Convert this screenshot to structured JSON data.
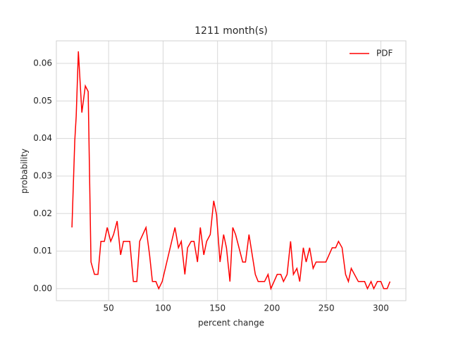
{
  "chart_data": {
    "type": "line",
    "title": "1211 month(s)",
    "xlabel": "percent change",
    "ylabel": "probability",
    "legend": "upper right",
    "grid": true,
    "xlim": [
      2,
      323
    ],
    "xticks": [
      50,
      100,
      150,
      200,
      250,
      300
    ],
    "ylim": [
      -0.0032,
      0.066
    ],
    "yticks": [
      {
        "value": 0,
        "label": "0.00"
      },
      0.01,
      0.02,
      0.03,
      0.04,
      0.05,
      0.06
    ],
    "series": [
      {
        "name": "PDF",
        "color": "#ff0000",
        "x": [
          16.3,
          18.9,
          20.2,
          22.2,
          25.4,
          28.6,
          31.2,
          33.8,
          37.0,
          40.2,
          42.9,
          46.1,
          48.7,
          51.9,
          54.5,
          57.8,
          61.0,
          63.6,
          69.4,
          72.7,
          75.9,
          78.5,
          84.3,
          87.6,
          90.2,
          93.4,
          96.0,
          99.2,
          110.9,
          114.1,
          116.7,
          120.0,
          122.5,
          125.8,
          128.4,
          131.6,
          134.2,
          137.4,
          140.0,
          143.3,
          146.5,
          149.1,
          152.3,
          155.6,
          158.2,
          161.4,
          164.0,
          166.6,
          173.1,
          175.7,
          178.9,
          184.7,
          187.3,
          193.2,
          196.4,
          199.0,
          204.8,
          208.1,
          210.6,
          213.9,
          217.1,
          219.7,
          222.9,
          225.5,
          228.8,
          231.4,
          234.6,
          237.8,
          240.5,
          249.5,
          255.3,
          258.5,
          261.1,
          264.4,
          267.6,
          270.2,
          272.8,
          279.3,
          285.1,
          287.7,
          291.0,
          293.5,
          296.8,
          300.0,
          302.6,
          305.8,
          308.4
        ],
        "values": [
          0.0163,
          0.0394,
          0.0459,
          0.0632,
          0.0469,
          0.054,
          0.0525,
          0.0071,
          0.0038,
          0.0038,
          0.0126,
          0.0126,
          0.0163,
          0.0126,
          0.0144,
          0.018,
          0.009,
          0.0126,
          0.0126,
          0.0019,
          0.0019,
          0.0126,
          0.0163,
          0.009,
          0.0019,
          0.0019,
          0,
          0.0019,
          0.0163,
          0.0109,
          0.0126,
          0.0038,
          0.0109,
          0.0126,
          0.0126,
          0.0071,
          0.0163,
          0.009,
          0.0126,
          0.0144,
          0.0234,
          0.0197,
          0.0071,
          0.0144,
          0.0109,
          0.0019,
          0.0163,
          0.0144,
          0.0071,
          0.0071,
          0.0144,
          0.0038,
          0.0019,
          0.0019,
          0.0038,
          0,
          0.0038,
          0.0038,
          0.0019,
          0.0038,
          0.0126,
          0.0038,
          0.0054,
          0.0019,
          0.0109,
          0.0071,
          0.0109,
          0.0054,
          0.0071,
          0.0071,
          0.0109,
          0.0109,
          0.0126,
          0.0109,
          0.0038,
          0.0019,
          0.0054,
          0.0019,
          0.0019,
          0,
          0.0019,
          0,
          0.0019,
          0.0019,
          0,
          0,
          0.0019
        ]
      }
    ]
  }
}
